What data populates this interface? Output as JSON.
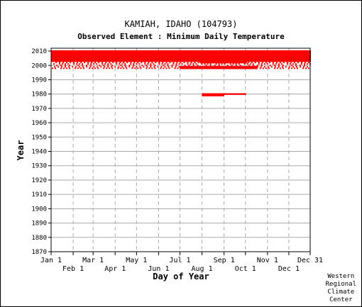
{
  "chart_data": {
    "type": "scatter",
    "title": "KAMIAH, IDAHO   (104793)",
    "subtitle": "Observed Element : Minimum Daily Temperature",
    "xlabel": "Day of Year",
    "ylabel": "Year",
    "xlim": [
      1,
      365
    ],
    "ylim": [
      1870,
      2012
    ],
    "grid": true,
    "mark_color": "#ff0000",
    "grid_color": "#aaaaaa",
    "yticks": [
      1870,
      1880,
      1890,
      1900,
      1910,
      1920,
      1930,
      1940,
      1950,
      1960,
      1970,
      1980,
      1990,
      2000,
      2010
    ],
    "xticks_upper": [
      {
        "label": "Jan 1",
        "day": 1
      },
      {
        "label": "Mar 1",
        "day": 60
      },
      {
        "label": "May 1",
        "day": 121
      },
      {
        "label": "Jul 1",
        "day": 182
      },
      {
        "label": "Sep 1",
        "day": 244
      },
      {
        "label": "Nov 1",
        "day": 305
      },
      {
        "label": "Dec 31",
        "day": 365
      }
    ],
    "xticks_lower": [
      {
        "label": "Feb 1",
        "day": 32
      },
      {
        "label": "Apr 1",
        "day": 91
      },
      {
        "label": "Jun 1",
        "day": 152
      },
      {
        "label": "Aug 1",
        "day": 213
      },
      {
        "label": "Oct 1",
        "day": 274
      },
      {
        "label": "Dec 1",
        "day": 335
      }
    ],
    "series": [
      {
        "segments": [
          {
            "year": 1979,
            "start": 213,
            "end": 243
          },
          {
            "year": 1980,
            "start": 213,
            "end": 274
          },
          {
            "year": 1998,
            "start": 182,
            "end": 290
          },
          {
            "year": 1999,
            "start": 182,
            "end": 290
          },
          {
            "year": 2002,
            "start": 210,
            "end": 275
          },
          {
            "year": 2003,
            "start": 1,
            "end": 365
          },
          {
            "year": 2004,
            "start": 1,
            "end": 365
          },
          {
            "year": 2005,
            "start": 1,
            "end": 365
          },
          {
            "year": 2006,
            "start": 1,
            "end": 365
          },
          {
            "year": 2007,
            "start": 1,
            "end": 365
          },
          {
            "year": 2008,
            "start": 1,
            "end": 365
          },
          {
            "year": 2009,
            "start": 1,
            "end": 365
          },
          {
            "year": 2010,
            "start": 1,
            "end": 365
          }
        ]
      },
      {
        "sparse_years": [
          1998,
          1999,
          2000,
          2001,
          2002
        ]
      }
    ]
  },
  "credit": [
    "Western",
    "Regional",
    "Climate",
    "Center"
  ]
}
